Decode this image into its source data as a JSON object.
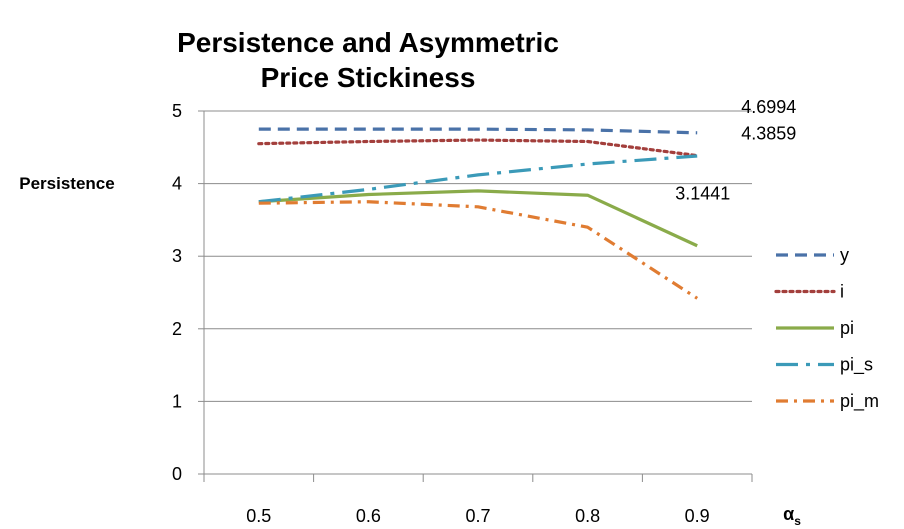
{
  "chart_data": {
    "type": "line",
    "title_lines": [
      "Persistence and Asymmetric",
      "Price Stickiness"
    ],
    "ylabel": "Persistence",
    "xlabel": "α",
    "xlabel_sub": "s",
    "x": [
      0.5,
      0.6,
      0.7,
      0.8,
      0.9
    ],
    "x_ticklabels": [
      "0.5",
      "0.6",
      "0.7",
      "0.8",
      "0.9"
    ],
    "ylim": [
      0,
      5
    ],
    "y_ticks": [
      0,
      1,
      2,
      3,
      4,
      5
    ],
    "grid": "horizontal",
    "legend_position": "right",
    "series": [
      {
        "name": "y",
        "color": "#4a72a8",
        "dash": "dash",
        "values": [
          4.75,
          4.75,
          4.75,
          4.74,
          4.6994
        ]
      },
      {
        "name": "i",
        "color": "#a33f3c",
        "dash": "dot",
        "values": [
          4.55,
          4.58,
          4.6,
          4.58,
          4.3859
        ]
      },
      {
        "name": "pi",
        "color": "#8aab4a",
        "dash": "solid",
        "values": [
          3.75,
          3.85,
          3.9,
          3.84,
          3.1441
        ]
      },
      {
        "name": "pi_s",
        "color": "#3b9ab8",
        "dash": "longdashdot",
        "values": [
          3.75,
          3.92,
          4.12,
          4.27,
          4.38
        ]
      },
      {
        "name": "pi_m",
        "color": "#e07c32",
        "dash": "dashdot",
        "values": [
          3.73,
          3.75,
          3.68,
          3.4,
          2.42
        ]
      }
    ],
    "annotations": [
      {
        "text": "4.6994",
        "series": "y"
      },
      {
        "text": "4.3859",
        "series": "i"
      },
      {
        "text": "3.1441",
        "series": "pi"
      }
    ]
  }
}
